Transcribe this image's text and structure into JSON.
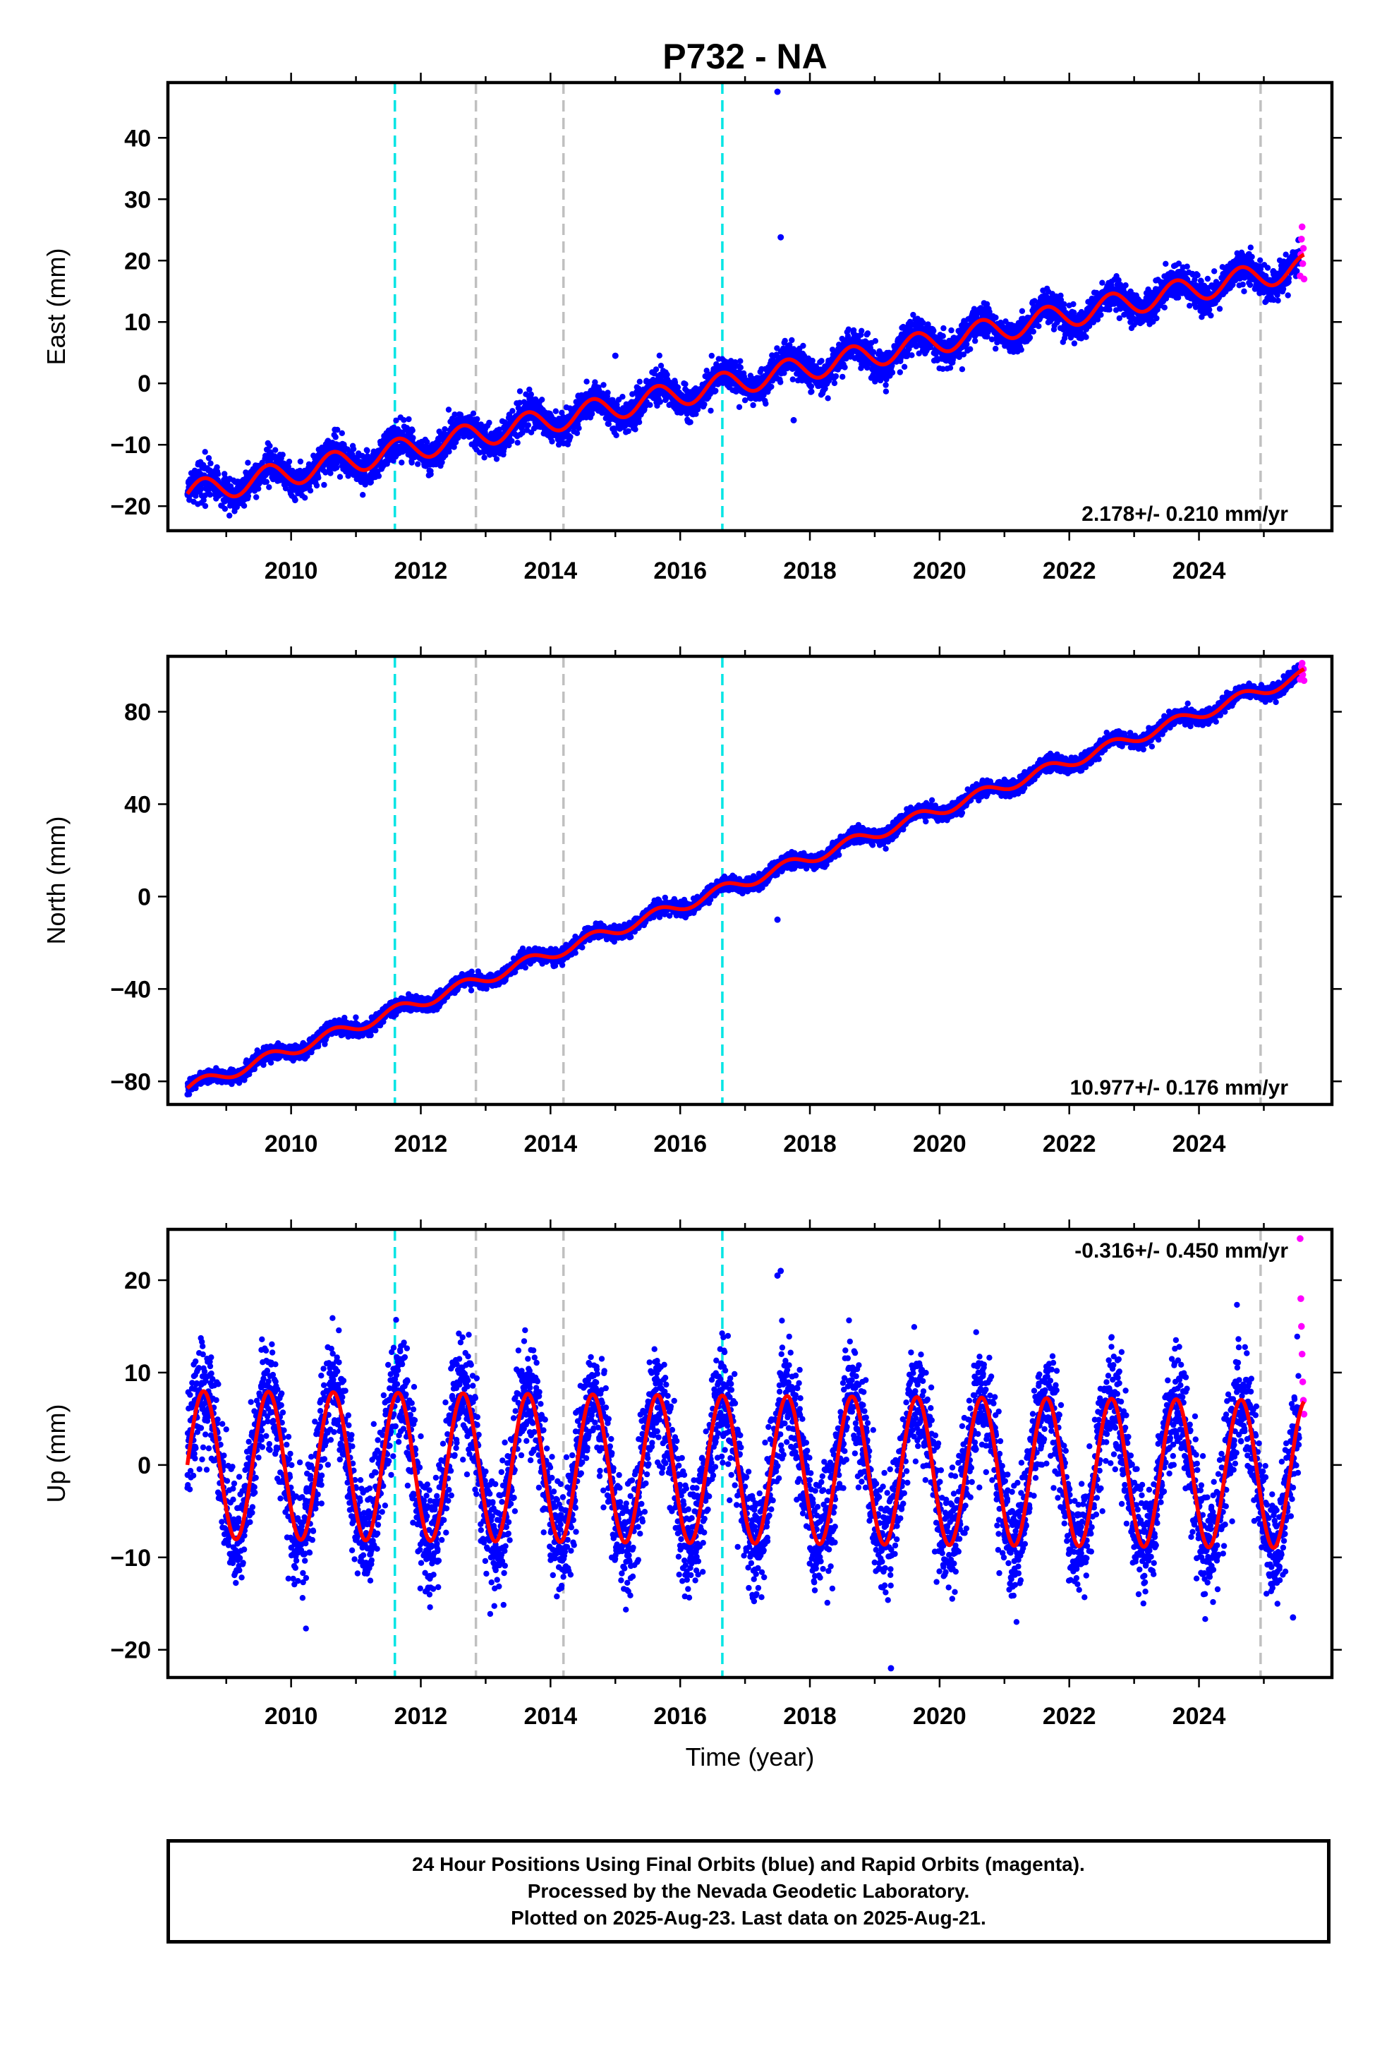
{
  "title": "P732 - NA",
  "footer": {
    "line1": "24 Hour Positions Using Final Orbits (blue) and Rapid Orbits (magenta).",
    "line2": "Processed by the Nevada Geodetic Laboratory.",
    "line3": "Plotted on 2025-Aug-23. Last data on 2025-Aug-21."
  },
  "colors": {
    "final_orbits": "#0000ff",
    "rapid_orbits": "#ff00ff",
    "model_fit": "#ff0000",
    "break_cyan": "#00e5e5",
    "break_gray": "#c0c0c0"
  },
  "chart_data": [
    {
      "type": "scatter",
      "title": "P732 - NA",
      "ylabel": "East (mm)",
      "xlabel": "",
      "xlim": [
        2008.1,
        2026.05
      ],
      "ylim": [
        -24,
        49
      ],
      "xticks": [
        2010,
        2012,
        2014,
        2016,
        2018,
        2020,
        2022,
        2024
      ],
      "yticks": [
        -20,
        -10,
        0,
        10,
        20,
        30,
        40
      ],
      "ytick_labels": [
        "−20",
        "−10",
        "0",
        "10",
        "20",
        "30",
        "40"
      ],
      "rate_text": "2.178+/- 0.210 mm/yr",
      "rate_position": "bottom-right",
      "trend": {
        "start": [
          2008.4,
          -18
        ],
        "end": [
          2025.62,
          19
        ],
        "seasonal_amplitude": 2.0
      },
      "series": [
        {
          "name": "Final Orbits",
          "color": "#0000ff",
          "x_range": [
            2008.4,
            2025.55
          ],
          "scatter": 1.3
        },
        {
          "name": "Rapid Orbits",
          "color": "#ff00ff",
          "x_range": [
            2025.55,
            2025.62
          ]
        }
      ],
      "outliers": [
        {
          "x": 2017.5,
          "y": 47.5
        },
        {
          "x": 2017.55,
          "y": 23.8
        },
        {
          "x": 2017.75,
          "y": -6.0
        },
        {
          "x": 2015.0,
          "y": 4.5
        }
      ],
      "rapid_points": [
        [
          2025.56,
          17.5
        ],
        [
          2025.57,
          21.0
        ],
        [
          2025.58,
          23.5
        ],
        [
          2025.59,
          25.5
        ],
        [
          2025.6,
          19.5
        ],
        [
          2025.61,
          22.0
        ],
        [
          2025.62,
          17.0
        ]
      ],
      "breaks": [
        {
          "x": 2011.6,
          "kind": "cyan"
        },
        {
          "x": 2012.85,
          "kind": "gray"
        },
        {
          "x": 2014.2,
          "kind": "gray"
        },
        {
          "x": 2016.65,
          "kind": "cyan"
        },
        {
          "x": 2024.95,
          "kind": "gray"
        }
      ]
    },
    {
      "type": "scatter",
      "ylabel": "North (mm)",
      "xlabel": "",
      "xlim": [
        2008.1,
        2026.05
      ],
      "ylim": [
        -90,
        104
      ],
      "xticks": [
        2010,
        2012,
        2014,
        2016,
        2018,
        2020,
        2022,
        2024
      ],
      "yticks": [
        -80,
        -40,
        0,
        40,
        80
      ],
      "ytick_labels": [
        "−80",
        "−40",
        "0",
        "40",
        "80"
      ],
      "rate_text": "10.977+/- 0.176 mm/yr",
      "rate_position": "bottom-right",
      "trend": {
        "start": [
          2008.4,
          -83
        ],
        "end": [
          2025.62,
          96
        ],
        "seasonal_amplitude": 2.5
      },
      "series": [
        {
          "name": "Final Orbits",
          "color": "#0000ff",
          "x_range": [
            2008.4,
            2025.55
          ],
          "scatter": 1.5
        },
        {
          "name": "Rapid Orbits",
          "color": "#ff00ff",
          "x_range": [
            2025.55,
            2025.62
          ]
        }
      ],
      "outliers": [
        {
          "x": 2017.5,
          "y": -10.0
        },
        {
          "x": 2017.6,
          "y": 14.0
        }
      ],
      "rapid_points": [
        [
          2025.56,
          94.0
        ],
        [
          2025.57,
          97.0
        ],
        [
          2025.58,
          99.5
        ],
        [
          2025.59,
          101.0
        ],
        [
          2025.6,
          96.0
        ],
        [
          2025.61,
          98.5
        ],
        [
          2025.62,
          93.5
        ]
      ],
      "breaks": [
        {
          "x": 2011.6,
          "kind": "cyan"
        },
        {
          "x": 2012.85,
          "kind": "gray"
        },
        {
          "x": 2014.2,
          "kind": "gray"
        },
        {
          "x": 2016.65,
          "kind": "cyan"
        },
        {
          "x": 2024.95,
          "kind": "gray"
        }
      ]
    },
    {
      "type": "scatter",
      "ylabel": "Up (mm)",
      "xlabel": "Time (year)",
      "xlim": [
        2008.1,
        2026.05
      ],
      "ylim": [
        -23,
        25.5
      ],
      "xticks": [
        2010,
        2012,
        2014,
        2016,
        2018,
        2020,
        2022,
        2024
      ],
      "yticks": [
        -20,
        -10,
        0,
        10,
        20
      ],
      "ytick_labels": [
        "−20",
        "−10",
        "0",
        "10",
        "20"
      ],
      "rate_text": "-0.316+/- 0.450 mm/yr",
      "rate_position": "top-right",
      "trend": {
        "start": [
          2008.4,
          0.0
        ],
        "end": [
          2025.62,
          -1.0
        ],
        "seasonal_amplitude": 8.0
      },
      "series": [
        {
          "name": "Final Orbits",
          "color": "#0000ff",
          "x_range": [
            2008.4,
            2025.55
          ],
          "scatter": 3.0
        },
        {
          "name": "Rapid Orbits",
          "color": "#ff00ff",
          "x_range": [
            2025.55,
            2025.62
          ]
        }
      ],
      "outliers": [
        {
          "x": 2019.25,
          "y": -22.0
        },
        {
          "x": 2017.55,
          "y": 21.0
        },
        {
          "x": 2017.5,
          "y": 20.5
        },
        {
          "x": 2025.45,
          "y": -16.5
        }
      ],
      "rapid_points": [
        [
          2025.56,
          24.5
        ],
        [
          2025.57,
          18.0
        ],
        [
          2025.58,
          15.0
        ],
        [
          2025.59,
          12.0
        ],
        [
          2025.6,
          9.0
        ],
        [
          2025.61,
          7.0
        ],
        [
          2025.62,
          5.5
        ]
      ],
      "breaks": [
        {
          "x": 2011.6,
          "kind": "cyan"
        },
        {
          "x": 2012.85,
          "kind": "gray"
        },
        {
          "x": 2014.2,
          "kind": "gray"
        },
        {
          "x": 2016.65,
          "kind": "cyan"
        },
        {
          "x": 2024.95,
          "kind": "gray"
        }
      ]
    }
  ]
}
